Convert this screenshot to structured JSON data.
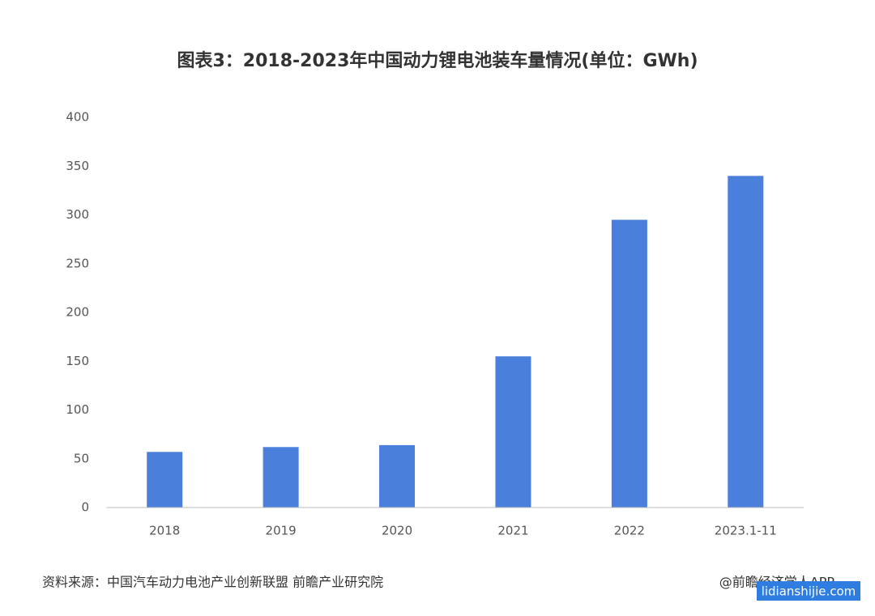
{
  "chart_data": {
    "type": "bar",
    "title": "图表3：2018-2023年中国动力锂电池装车量情况(单位：GWh)",
    "categories": [
      "2018",
      "2019",
      "2020",
      "2021",
      "2022",
      "2023.1-11"
    ],
    "values": [
      57,
      62,
      64,
      155,
      295,
      340
    ],
    "color": "#4a7fdc",
    "ylim": [
      0,
      400
    ],
    "yticks": [
      0,
      50,
      100,
      150,
      200,
      250,
      300,
      350,
      400
    ],
    "grid": false,
    "source": "资料来源：中国汽车动力电池产业创新联盟 前瞻产业研究院",
    "credit": "@前瞻经济学人APP",
    "watermark": "lidianshijie.com"
  }
}
